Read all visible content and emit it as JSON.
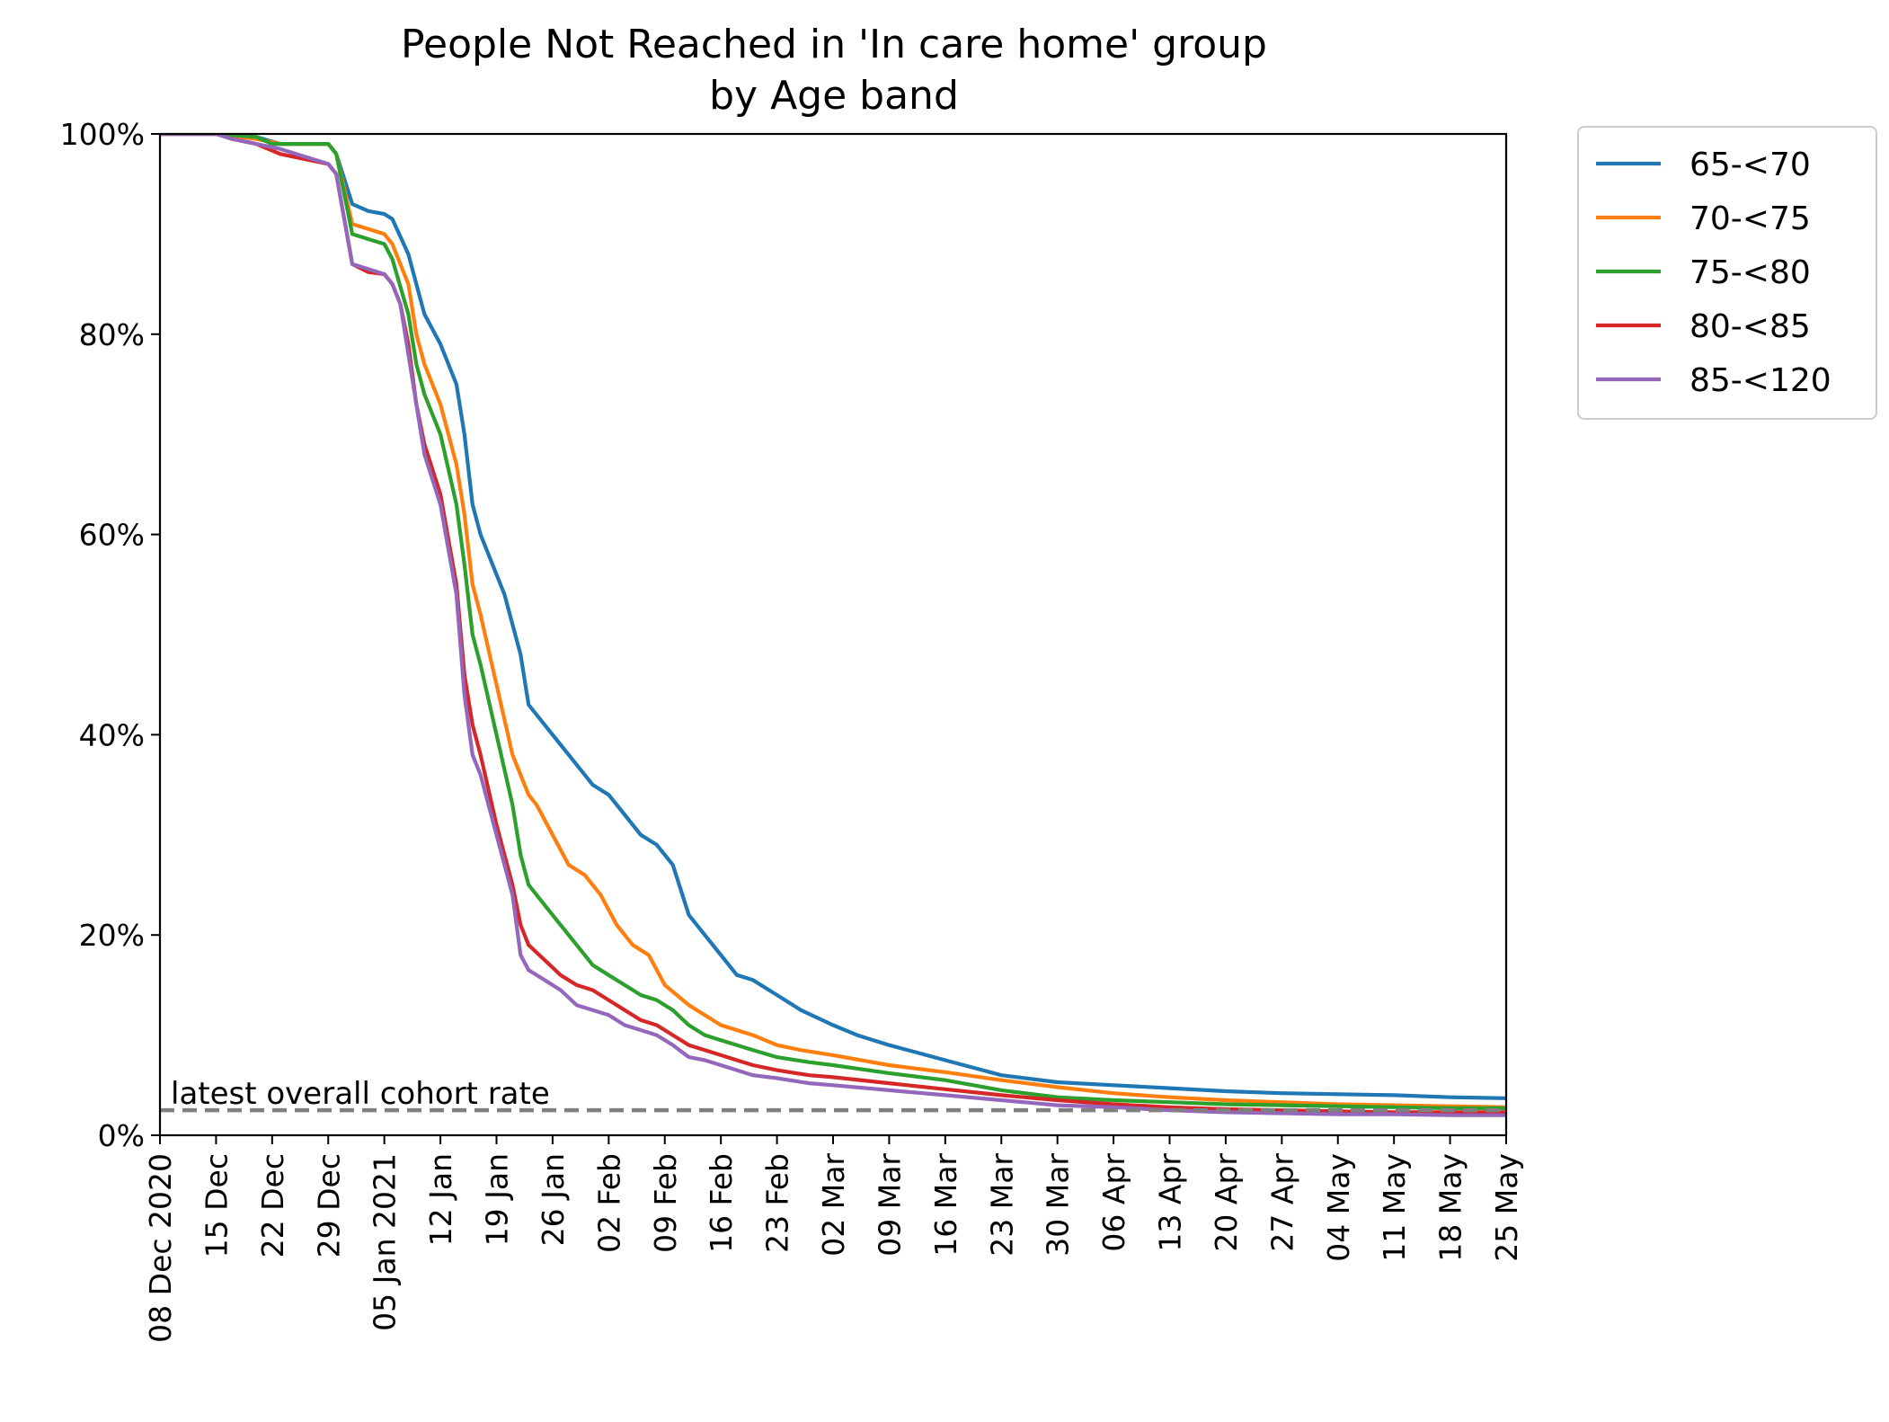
{
  "chart_data": {
    "type": "line",
    "title": [
      "People Not Reached in 'In care home' group",
      "by Age band"
    ],
    "xlabel": "",
    "ylabel": "",
    "ylim": [
      0,
      100
    ],
    "y_ticks": [
      0,
      20,
      40,
      60,
      80,
      100
    ],
    "y_tick_labels": [
      "0%",
      "20%",
      "40%",
      "60%",
      "80%",
      "100%"
    ],
    "x_range": [
      "2020-12-08",
      "2021-05-25"
    ],
    "x_ticks": [
      "2020-12-08",
      "2020-12-15",
      "2020-12-22",
      "2020-12-29",
      "2021-01-05",
      "2021-01-12",
      "2021-01-19",
      "2021-01-26",
      "2021-02-02",
      "2021-02-09",
      "2021-02-16",
      "2021-02-23",
      "2021-03-02",
      "2021-03-09",
      "2021-03-16",
      "2021-03-23",
      "2021-03-30",
      "2021-04-06",
      "2021-04-13",
      "2021-04-20",
      "2021-04-27",
      "2021-05-04",
      "2021-05-11",
      "2021-05-18",
      "2021-05-25"
    ],
    "x_tick_labels": [
      "08 Dec 2020",
      "15 Dec",
      "22 Dec",
      "29 Dec",
      "05 Jan 2021",
      "12 Jan",
      "19 Jan",
      "26 Jan",
      "02 Feb",
      "09 Feb",
      "16 Feb",
      "23 Feb",
      "02 Mar",
      "09 Mar",
      "16 Mar",
      "23 Mar",
      "30 Mar",
      "06 Apr",
      "13 Apr",
      "20 Apr",
      "27 Apr",
      "04 May",
      "11 May",
      "18 May",
      "25 May"
    ],
    "grid": false,
    "legend_position": "outside-top-right",
    "reference_line": {
      "label": "latest overall cohort rate",
      "y": 2.5,
      "color": "#808080",
      "style": "dashed"
    },
    "series": [
      {
        "name": "65-<70",
        "color": "#1f77b4",
        "x": [
          "2020-12-08",
          "2020-12-15",
          "2020-12-20",
          "2020-12-23",
          "2020-12-29",
          "2020-12-30",
          "2021-01-01",
          "2021-01-03",
          "2021-01-05",
          "2021-01-06",
          "2021-01-08",
          "2021-01-09",
          "2021-01-10",
          "2021-01-12",
          "2021-01-14",
          "2021-01-15",
          "2021-01-16",
          "2021-01-17",
          "2021-01-18",
          "2021-01-20",
          "2021-01-22",
          "2021-01-23",
          "2021-01-25",
          "2021-01-27",
          "2021-01-29",
          "2021-01-31",
          "2021-02-02",
          "2021-02-04",
          "2021-02-06",
          "2021-02-08",
          "2021-02-10",
          "2021-02-12",
          "2021-02-14",
          "2021-02-16",
          "2021-02-18",
          "2021-02-20",
          "2021-02-23",
          "2021-02-26",
          "2021-03-02",
          "2021-03-05",
          "2021-03-09",
          "2021-03-16",
          "2021-03-23",
          "2021-03-30",
          "2021-04-06",
          "2021-04-13",
          "2021-04-20",
          "2021-04-27",
          "2021-05-04",
          "2021-05-11",
          "2021-05-18",
          "2021-05-25"
        ],
        "y": [
          100,
          100,
          99.7,
          99,
          99,
          98,
          93,
          92.3,
          92,
          91.5,
          88,
          85,
          82,
          79,
          75,
          70,
          63,
          60,
          58,
          54,
          48,
          43,
          41,
          39,
          37,
          35,
          34,
          32,
          30,
          29,
          27,
          22,
          20,
          18,
          16,
          15.5,
          14,
          12.5,
          11,
          10,
          9,
          7.5,
          6,
          5.3,
          5,
          4.7,
          4.4,
          4.2,
          4.1,
          4,
          3.8,
          3.7
        ]
      },
      {
        "name": "70-<75",
        "color": "#ff7f0e",
        "x": [
          "2020-12-08",
          "2020-12-15",
          "2020-12-20",
          "2020-12-23",
          "2020-12-29",
          "2020-12-30",
          "2021-01-01",
          "2021-01-03",
          "2021-01-05",
          "2021-01-06",
          "2021-01-08",
          "2021-01-09",
          "2021-01-10",
          "2021-01-11",
          "2021-01-12",
          "2021-01-14",
          "2021-01-15",
          "2021-01-16",
          "2021-01-17",
          "2021-01-19",
          "2021-01-21",
          "2021-01-23",
          "2021-01-24",
          "2021-01-26",
          "2021-01-28",
          "2021-01-30",
          "2021-02-01",
          "2021-02-03",
          "2021-02-05",
          "2021-02-07",
          "2021-02-09",
          "2021-02-12",
          "2021-02-16",
          "2021-02-20",
          "2021-02-23",
          "2021-02-26",
          "2021-03-02",
          "2021-03-09",
          "2021-03-16",
          "2021-03-23",
          "2021-03-30",
          "2021-04-06",
          "2021-04-13",
          "2021-04-20",
          "2021-04-27",
          "2021-05-04",
          "2021-05-11",
          "2021-05-18",
          "2021-05-25"
        ],
        "y": [
          100,
          100,
          99.5,
          99,
          99,
          98,
          91,
          90.5,
          90,
          89,
          85,
          80,
          77,
          75,
          73,
          67,
          62,
          55,
          52,
          45,
          38,
          34,
          33,
          30,
          27,
          26,
          24,
          21,
          19,
          18,
          15,
          13,
          11,
          10,
          9,
          8.5,
          8,
          7,
          6.3,
          5.5,
          4.8,
          4.2,
          3.8,
          3.5,
          3.3,
          3.1,
          3,
          2.9,
          2.8
        ]
      },
      {
        "name": "75-<80",
        "color": "#2ca02c",
        "x": [
          "2020-12-08",
          "2020-12-15",
          "2020-12-20",
          "2020-12-22",
          "2020-12-29",
          "2020-12-30",
          "2021-01-01",
          "2021-01-03",
          "2021-01-05",
          "2021-01-06",
          "2021-01-08",
          "2021-01-09",
          "2021-01-10",
          "2021-01-11",
          "2021-01-12",
          "2021-01-14",
          "2021-01-15",
          "2021-01-16",
          "2021-01-17",
          "2021-01-19",
          "2021-01-21",
          "2021-01-22",
          "2021-01-23",
          "2021-01-25",
          "2021-01-27",
          "2021-01-29",
          "2021-01-31",
          "2021-02-02",
          "2021-02-04",
          "2021-02-06",
          "2021-02-08",
          "2021-02-10",
          "2021-02-12",
          "2021-02-14",
          "2021-02-16",
          "2021-02-18",
          "2021-02-20",
          "2021-02-23",
          "2021-02-27",
          "2021-03-02",
          "2021-03-09",
          "2021-03-16",
          "2021-03-23",
          "2021-03-30",
          "2021-04-06",
          "2021-04-13",
          "2021-04-20",
          "2021-04-27",
          "2021-05-04",
          "2021-05-11",
          "2021-05-18",
          "2021-05-25"
        ],
        "y": [
          100,
          100,
          99.7,
          99,
          99,
          98,
          90,
          89.5,
          89,
          87.5,
          82,
          77,
          74,
          72,
          70,
          63,
          57,
          50,
          47,
          40,
          33,
          28,
          25,
          23,
          21,
          19,
          17,
          16,
          15,
          14,
          13.5,
          12.5,
          11,
          10,
          9.5,
          9,
          8.5,
          7.8,
          7.3,
          7,
          6.2,
          5.5,
          4.5,
          3.8,
          3.5,
          3.3,
          3.1,
          3,
          2.9,
          2.8,
          2.7,
          2.7
        ]
      },
      {
        "name": "80-<85",
        "color": "#d62728",
        "x": [
          "2020-12-08",
          "2020-12-15",
          "2020-12-17",
          "2020-12-20",
          "2020-12-23",
          "2020-12-29",
          "2020-12-30",
          "2021-01-01",
          "2021-01-03",
          "2021-01-05",
          "2021-01-06",
          "2021-01-07",
          "2021-01-08",
          "2021-01-09",
          "2021-01-10",
          "2021-01-12",
          "2021-01-14",
          "2021-01-15",
          "2021-01-16",
          "2021-01-17",
          "2021-01-19",
          "2021-01-21",
          "2021-01-22",
          "2021-01-23",
          "2021-01-25",
          "2021-01-27",
          "2021-01-29",
          "2021-01-31",
          "2021-02-02",
          "2021-02-04",
          "2021-02-06",
          "2021-02-08",
          "2021-02-10",
          "2021-02-12",
          "2021-02-14",
          "2021-02-16",
          "2021-02-18",
          "2021-02-20",
          "2021-02-23",
          "2021-02-27",
          "2021-03-02",
          "2021-03-09",
          "2021-03-16",
          "2021-03-23",
          "2021-03-30",
          "2021-04-06",
          "2021-04-13",
          "2021-04-20",
          "2021-04-27",
          "2021-05-04",
          "2021-05-11",
          "2021-05-18",
          "2021-05-25"
        ],
        "y": [
          100,
          100,
          99.5,
          99,
          98,
          97,
          96,
          87,
          86.2,
          86,
          85,
          83,
          79,
          73,
          69,
          64,
          55,
          46,
          41,
          38,
          31,
          25,
          21,
          19,
          17.5,
          16,
          15,
          14.5,
          13.5,
          12.5,
          11.5,
          11,
          10,
          9,
          8.5,
          8,
          7.5,
          7,
          6.5,
          6,
          5.8,
          5.2,
          4.6,
          4,
          3.5,
          3.1,
          2.8,
          2.6,
          2.5,
          2.4,
          2.3,
          2.3,
          2.3
        ]
      },
      {
        "name": "85-<120",
        "color": "#9467bd",
        "x": [
          "2020-12-08",
          "2020-12-15",
          "2020-12-17",
          "2020-12-20",
          "2020-12-23",
          "2020-12-29",
          "2020-12-30",
          "2021-01-01",
          "2021-01-03",
          "2021-01-05",
          "2021-01-06",
          "2021-01-07",
          "2021-01-08",
          "2021-01-09",
          "2021-01-10",
          "2021-01-12",
          "2021-01-14",
          "2021-01-15",
          "2021-01-16",
          "2021-01-17",
          "2021-01-19",
          "2021-01-21",
          "2021-01-22",
          "2021-01-23",
          "2021-01-25",
          "2021-01-27",
          "2021-01-29",
          "2021-01-31",
          "2021-02-02",
          "2021-02-04",
          "2021-02-06",
          "2021-02-08",
          "2021-02-10",
          "2021-02-12",
          "2021-02-14",
          "2021-02-16",
          "2021-02-18",
          "2021-02-20",
          "2021-02-23",
          "2021-02-27",
          "2021-03-02",
          "2021-03-09",
          "2021-03-16",
          "2021-03-23",
          "2021-03-30",
          "2021-04-06",
          "2021-04-13",
          "2021-04-20",
          "2021-04-27",
          "2021-05-04",
          "2021-05-11",
          "2021-05-18",
          "2021-05-25"
        ],
        "y": [
          100,
          100,
          99.5,
          99,
          98.5,
          97,
          96,
          87,
          86.5,
          86,
          85,
          83,
          78,
          73,
          68,
          63,
          54,
          44,
          38,
          36,
          30,
          24,
          18,
          16.5,
          15.5,
          14.5,
          13,
          12.5,
          12,
          11,
          10.5,
          10,
          9,
          7.8,
          7.5,
          7,
          6.5,
          6,
          5.7,
          5.2,
          5,
          4.5,
          4,
          3.5,
          3,
          2.8,
          2.5,
          2.3,
          2.2,
          2.1,
          2.1,
          2,
          2
        ]
      }
    ]
  }
}
